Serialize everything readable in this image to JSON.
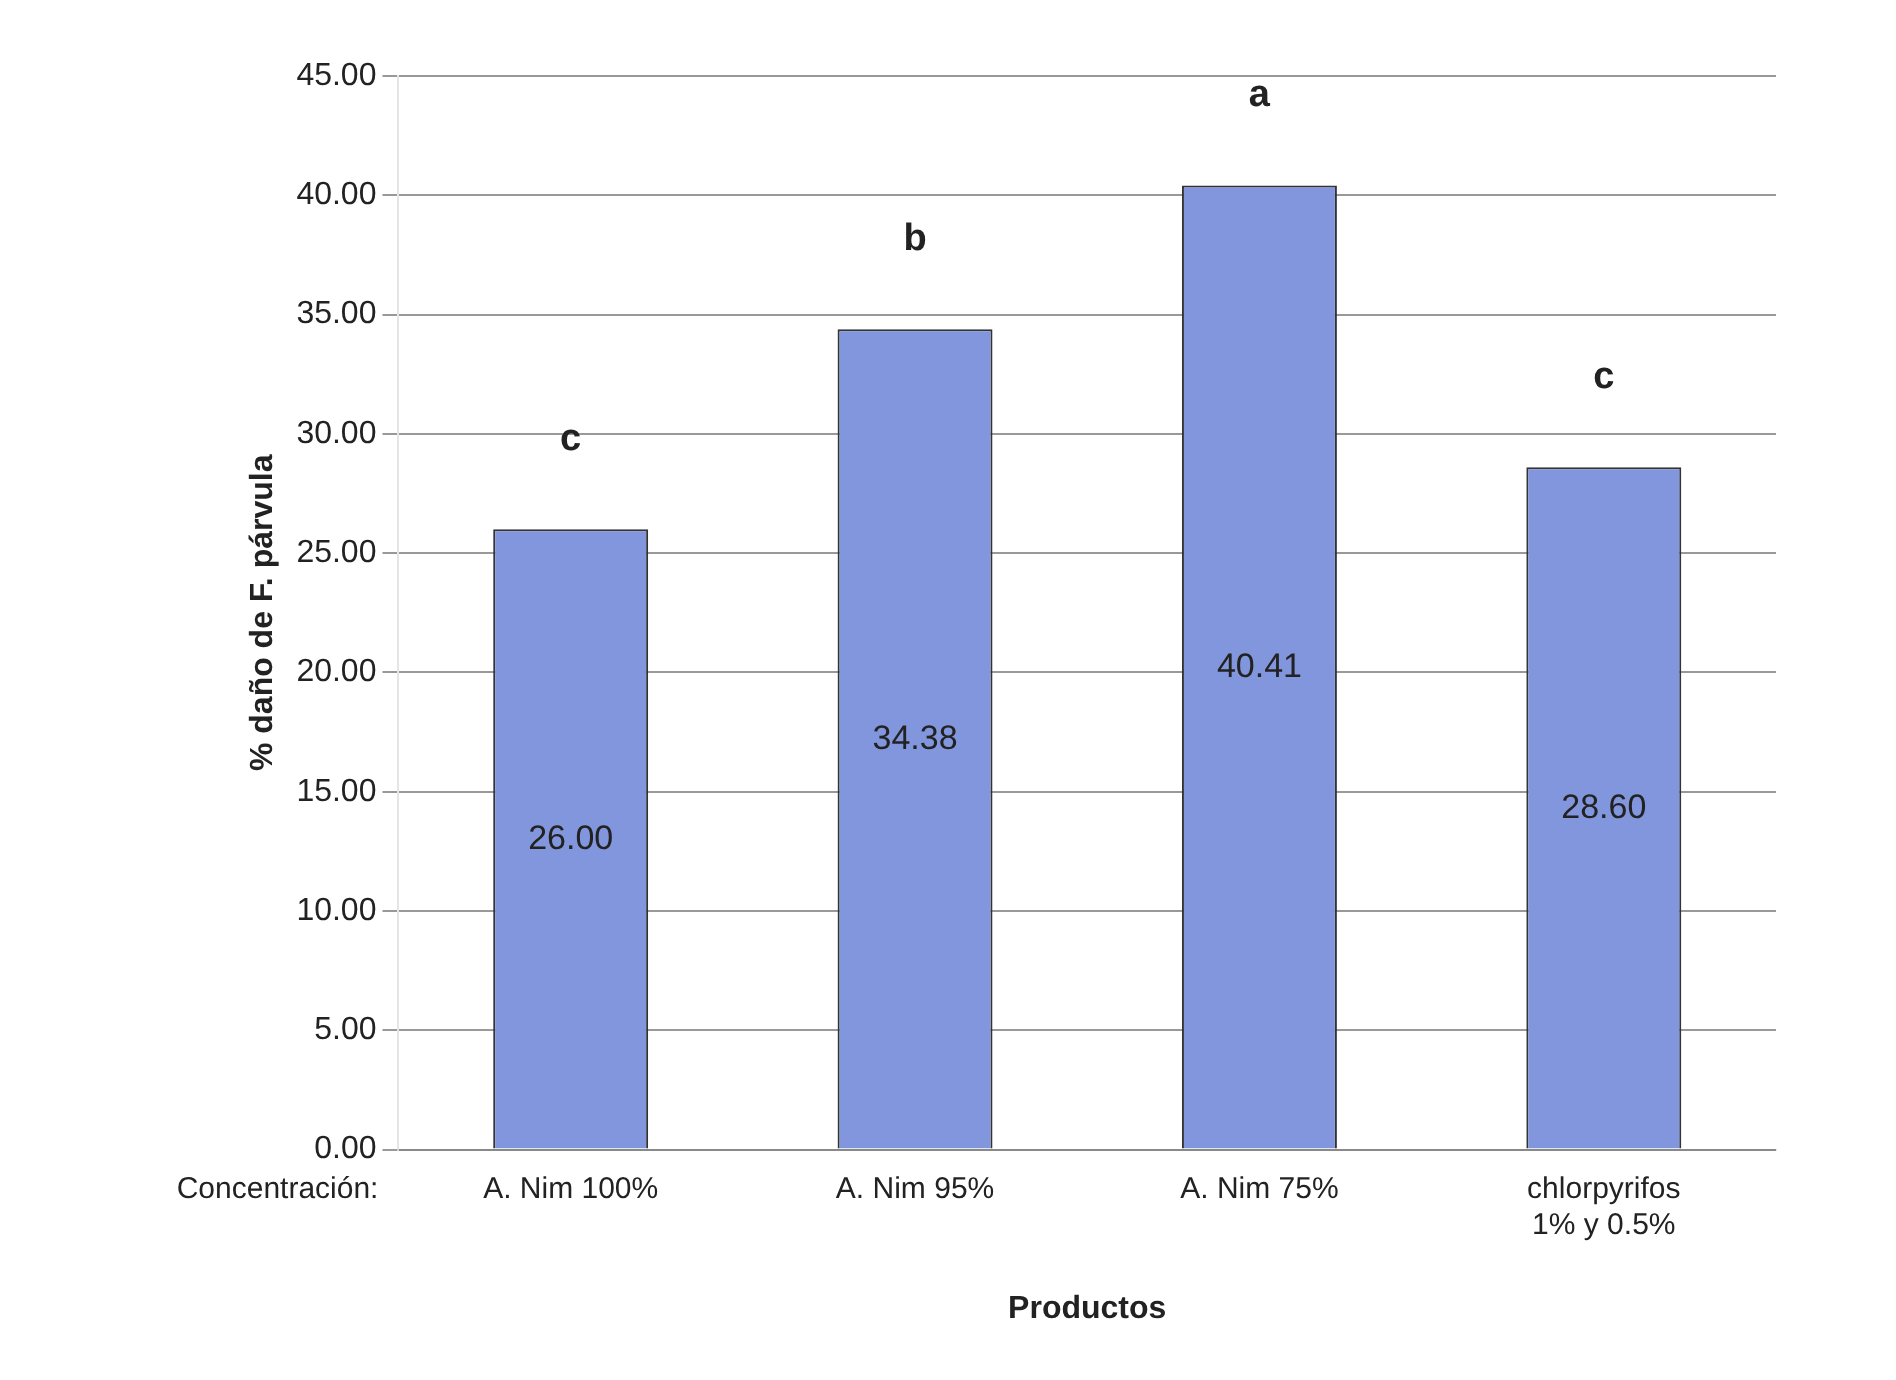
{
  "chart_data": {
    "type": "bar",
    "xlabel": "Productos",
    "ylabel": "% daño de F. párvula",
    "categories": [
      "A. Nim 100%",
      "A. Nim 95%",
      "A. Nim 75%",
      "chlorpyrifos 1% y 0.5%"
    ],
    "values": [
      26,
      34.38,
      40.41,
      28.6
    ],
    "color": "#8196dc",
    "value_labels": [
      "26.00",
      "34.38",
      "40.41",
      "28.60"
    ],
    "ylim": [
      0,
      45
    ],
    "yticks": [
      {
        "value": 0,
        "label": "0.00"
      },
      {
        "value": 5,
        "label": "5.00"
      },
      {
        "value": 10,
        "label": "10.00"
      },
      {
        "value": 15,
        "label": "15.00"
      },
      {
        "value": 20,
        "label": "20.00"
      },
      {
        "value": 25,
        "label": "25.00"
      },
      {
        "value": 30,
        "label": "30.00"
      },
      {
        "value": 35,
        "label": "35.00"
      },
      {
        "value": 40,
        "label": "40.00"
      },
      {
        "value": 45,
        "label": "45.00"
      }
    ],
    "grid": "y",
    "annotations": [
      "Concentración:",
      "c",
      "b",
      "a",
      "c"
    ]
  }
}
